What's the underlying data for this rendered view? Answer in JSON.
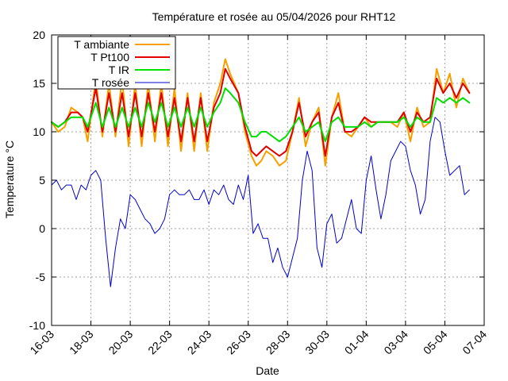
{
  "chart_data": {
    "type": "line",
    "title": "Température et rosée au 05/04/2026 pour RHT12",
    "xlabel": "Date",
    "ylabel": "Temperature °C",
    "xlim": [
      "2026-03-16",
      "2026-04-07"
    ],
    "ylim": [
      -10,
      20
    ],
    "grid": true,
    "legend_position": "top-left",
    "x_ticks": [
      {
        "date": "2026-03-16",
        "label": "16-03"
      },
      {
        "date": "2026-03-18",
        "label": "18-03"
      },
      {
        "date": "2026-03-20",
        "label": "20-03"
      },
      {
        "date": "2026-03-22",
        "label": "22-03"
      },
      {
        "date": "2026-03-24",
        "label": "24-03"
      },
      {
        "date": "2026-03-26",
        "label": "26-03"
      },
      {
        "date": "2026-03-28",
        "label": "28-03"
      },
      {
        "date": "2026-03-30",
        "label": "30-03"
      },
      {
        "date": "2026-04-01",
        "label": "01-04"
      },
      {
        "date": "2026-04-03",
        "label": "03-04"
      },
      {
        "date": "2026-04-05",
        "label": "05-04"
      },
      {
        "date": "2026-04-07",
        "label": "07-04"
      }
    ],
    "y_ticks": [
      {
        "value": 20,
        "label": "20"
      },
      {
        "value": 15,
        "label": "15"
      },
      {
        "value": 10,
        "label": "10"
      },
      {
        "value": 5,
        "label": "5"
      },
      {
        "value": 0,
        "label": "0"
      },
      {
        "value": -5,
        "label": "-5"
      },
      {
        "value": -10,
        "label": "-10"
      }
    ],
    "series": [
      {
        "name": "T ambiante",
        "color": "#f5a000",
        "x": [
          "2026-03-16 00:00",
          "2026-03-16 08:00",
          "2026-03-16 16:00",
          "2026-03-17 00:00",
          "2026-03-17 08:00",
          "2026-03-17 14:00",
          "2026-03-17 20:00",
          "2026-03-18 06:00",
          "2026-03-18 14:00",
          "2026-03-18 22:00",
          "2026-03-19 06:00",
          "2026-03-19 14:00",
          "2026-03-19 22:00",
          "2026-03-20 06:00",
          "2026-03-20 14:00",
          "2026-03-20 22:00",
          "2026-03-21 06:00",
          "2026-03-21 14:00",
          "2026-03-21 22:00",
          "2026-03-22 06:00",
          "2026-03-22 14:00",
          "2026-03-22 22:00",
          "2026-03-23 06:00",
          "2026-03-23 14:00",
          "2026-03-23 22:00",
          "2026-03-24 06:00",
          "2026-03-24 14:00",
          "2026-03-24 20:00",
          "2026-03-25 02:00",
          "2026-03-25 12:00",
          "2026-03-25 20:00",
          "2026-03-26 04:00",
          "2026-03-26 10:00",
          "2026-03-26 16:00",
          "2026-03-26 22:00",
          "2026-03-27 06:00",
          "2026-03-27 14:00",
          "2026-03-27 22:00",
          "2026-03-28 06:00",
          "2026-03-28 14:00",
          "2026-03-28 22:00",
          "2026-03-29 06:00",
          "2026-03-29 14:00",
          "2026-03-29 22:00",
          "2026-03-30 06:00",
          "2026-03-30 14:00",
          "2026-03-30 22:00",
          "2026-03-31 06:00",
          "2026-03-31 14:00",
          "2026-03-31 22:00",
          "2026-04-01 06:00",
          "2026-04-01 14:00",
          "2026-04-01 22:00",
          "2026-04-02 06:00",
          "2026-04-02 14:00",
          "2026-04-02 22:00",
          "2026-04-03 06:00",
          "2026-04-03 14:00",
          "2026-04-03 22:00",
          "2026-04-04 06:00",
          "2026-04-04 14:00",
          "2026-04-04 22:00",
          "2026-04-05 06:00",
          "2026-04-05 14:00",
          "2026-04-05 22:00",
          "2026-04-06 06:00"
        ],
        "y": [
          11.0,
          10.0,
          10.5,
          12.5,
          12.0,
          11.5,
          9.0,
          15.5,
          9.5,
          15.0,
          9.5,
          15.5,
          8.5,
          15.0,
          8.5,
          15.0,
          9.0,
          15.0,
          8.5,
          14.5,
          8.0,
          14.0,
          8.0,
          14.0,
          8.0,
          13.0,
          15.0,
          17.5,
          16.0,
          14.0,
          10.0,
          7.5,
          6.5,
          7.0,
          8.0,
          7.5,
          6.5,
          7.0,
          10.0,
          13.5,
          8.5,
          11.0,
          12.5,
          6.5,
          11.5,
          14.0,
          10.0,
          9.5,
          10.5,
          11.5,
          10.5,
          11.0,
          11.0,
          11.0,
          10.5,
          12.0,
          9.0,
          12.5,
          10.5,
          11.0,
          16.5,
          14.0,
          16.0,
          12.5,
          15.5,
          14.0
        ]
      },
      {
        "name": "T Pt100",
        "color": "#e00000",
        "x": [
          "2026-03-16 00:00",
          "2026-03-16 08:00",
          "2026-03-16 16:00",
          "2026-03-17 00:00",
          "2026-03-17 08:00",
          "2026-03-17 14:00",
          "2026-03-17 20:00",
          "2026-03-18 06:00",
          "2026-03-18 14:00",
          "2026-03-18 22:00",
          "2026-03-19 06:00",
          "2026-03-19 14:00",
          "2026-03-19 22:00",
          "2026-03-20 06:00",
          "2026-03-20 14:00",
          "2026-03-20 22:00",
          "2026-03-21 06:00",
          "2026-03-21 14:00",
          "2026-03-21 22:00",
          "2026-03-22 06:00",
          "2026-03-22 14:00",
          "2026-03-22 22:00",
          "2026-03-23 06:00",
          "2026-03-23 14:00",
          "2026-03-23 22:00",
          "2026-03-24 06:00",
          "2026-03-24 14:00",
          "2026-03-24 20:00",
          "2026-03-25 02:00",
          "2026-03-25 12:00",
          "2026-03-25 20:00",
          "2026-03-26 04:00",
          "2026-03-26 10:00",
          "2026-03-26 16:00",
          "2026-03-26 22:00",
          "2026-03-27 06:00",
          "2026-03-27 14:00",
          "2026-03-27 22:00",
          "2026-03-28 06:00",
          "2026-03-28 14:00",
          "2026-03-28 22:00",
          "2026-03-29 06:00",
          "2026-03-29 14:00",
          "2026-03-29 22:00",
          "2026-03-30 06:00",
          "2026-03-30 14:00",
          "2026-03-30 22:00",
          "2026-03-31 06:00",
          "2026-03-31 14:00",
          "2026-03-31 22:00",
          "2026-04-01 06:00",
          "2026-04-01 14:00",
          "2026-04-01 22:00",
          "2026-04-02 06:00",
          "2026-04-02 14:00",
          "2026-04-02 22:00",
          "2026-04-03 06:00",
          "2026-04-03 14:00",
          "2026-04-03 22:00",
          "2026-04-04 06:00",
          "2026-04-04 14:00",
          "2026-04-04 22:00",
          "2026-04-05 06:00",
          "2026-04-05 14:00",
          "2026-04-05 22:00",
          "2026-04-06 06:00"
        ],
        "y": [
          11.0,
          10.5,
          11.0,
          12.0,
          12.0,
          11.5,
          10.0,
          14.5,
          10.0,
          14.0,
          10.0,
          14.0,
          9.5,
          14.0,
          9.5,
          14.0,
          10.0,
          14.0,
          9.5,
          13.5,
          9.0,
          13.5,
          9.0,
          13.5,
          9.0,
          12.5,
          14.0,
          16.5,
          15.5,
          14.0,
          10.5,
          8.0,
          7.5,
          8.0,
          8.5,
          8.0,
          7.5,
          8.0,
          10.0,
          13.0,
          9.5,
          11.0,
          12.0,
          7.5,
          11.5,
          13.0,
          10.0,
          10.0,
          10.5,
          11.5,
          11.0,
          11.0,
          11.0,
          11.0,
          11.0,
          12.0,
          10.0,
          12.0,
          11.0,
          11.5,
          15.5,
          14.0,
          15.0,
          13.5,
          15.0,
          14.0
        ]
      },
      {
        "name": "T IR",
        "color": "#00e000",
        "x": [
          "2026-03-16 00:00",
          "2026-03-16 08:00",
          "2026-03-16 16:00",
          "2026-03-17 00:00",
          "2026-03-17 08:00",
          "2026-03-17 14:00",
          "2026-03-17 20:00",
          "2026-03-18 06:00",
          "2026-03-18 14:00",
          "2026-03-18 22:00",
          "2026-03-19 06:00",
          "2026-03-19 14:00",
          "2026-03-19 22:00",
          "2026-03-20 06:00",
          "2026-03-20 14:00",
          "2026-03-20 22:00",
          "2026-03-21 06:00",
          "2026-03-21 14:00",
          "2026-03-21 22:00",
          "2026-03-22 06:00",
          "2026-03-22 14:00",
          "2026-03-22 22:00",
          "2026-03-23 06:00",
          "2026-03-23 14:00",
          "2026-03-23 22:00",
          "2026-03-24 06:00",
          "2026-03-24 14:00",
          "2026-03-24 20:00",
          "2026-03-25 02:00",
          "2026-03-25 12:00",
          "2026-03-25 20:00",
          "2026-03-26 04:00",
          "2026-03-26 10:00",
          "2026-03-26 16:00",
          "2026-03-26 22:00",
          "2026-03-27 06:00",
          "2026-03-27 14:00",
          "2026-03-27 22:00",
          "2026-03-28 06:00",
          "2026-03-28 14:00",
          "2026-03-28 22:00",
          "2026-03-29 06:00",
          "2026-03-29 14:00",
          "2026-03-29 22:00",
          "2026-03-30 06:00",
          "2026-03-30 14:00",
          "2026-03-30 22:00",
          "2026-03-31 06:00",
          "2026-03-31 14:00",
          "2026-03-31 22:00",
          "2026-04-01 06:00",
          "2026-04-01 14:00",
          "2026-04-01 22:00",
          "2026-04-02 06:00",
          "2026-04-02 14:00",
          "2026-04-02 22:00",
          "2026-04-03 06:00",
          "2026-04-03 14:00",
          "2026-04-03 22:00",
          "2026-04-04 06:00",
          "2026-04-04 14:00",
          "2026-04-04 22:00",
          "2026-04-05 06:00",
          "2026-04-05 14:00",
          "2026-04-05 22:00",
          "2026-04-06 06:00"
        ],
        "y": [
          11.0,
          10.5,
          11.0,
          11.5,
          11.5,
          11.5,
          10.5,
          13.0,
          10.5,
          12.5,
          10.5,
          12.5,
          10.5,
          12.5,
          10.5,
          13.0,
          11.0,
          13.0,
          10.5,
          12.5,
          10.5,
          12.5,
          10.5,
          12.5,
          10.5,
          12.0,
          13.0,
          14.5,
          14.0,
          13.0,
          11.0,
          9.5,
          9.5,
          10.0,
          10.0,
          9.5,
          9.0,
          9.5,
          10.5,
          11.5,
          10.0,
          10.5,
          11.0,
          9.0,
          11.0,
          11.5,
          10.5,
          10.5,
          10.5,
          11.0,
          10.5,
          11.0,
          11.0,
          11.0,
          11.0,
          11.5,
          10.5,
          11.5,
          11.0,
          11.0,
          13.5,
          13.0,
          13.5,
          13.0,
          13.5,
          13.0
        ]
      },
      {
        "name": "T rosée",
        "color": "#0000cc",
        "x": [
          "2026-03-16 00:00",
          "2026-03-16 06:00",
          "2026-03-16 12:00",
          "2026-03-16 18:00",
          "2026-03-17 00:00",
          "2026-03-17 06:00",
          "2026-03-17 12:00",
          "2026-03-17 18:00",
          "2026-03-18 00:00",
          "2026-03-18 06:00",
          "2026-03-18 12:00",
          "2026-03-18 18:00",
          "2026-03-19 00:00",
          "2026-03-19 06:00",
          "2026-03-19 12:00",
          "2026-03-19 18:00",
          "2026-03-20 00:00",
          "2026-03-20 06:00",
          "2026-03-20 12:00",
          "2026-03-20 18:00",
          "2026-03-21 00:00",
          "2026-03-21 06:00",
          "2026-03-21 12:00",
          "2026-03-21 18:00",
          "2026-03-22 00:00",
          "2026-03-22 06:00",
          "2026-03-22 12:00",
          "2026-03-22 18:00",
          "2026-03-23 00:00",
          "2026-03-23 06:00",
          "2026-03-23 12:00",
          "2026-03-23 18:00",
          "2026-03-24 00:00",
          "2026-03-24 06:00",
          "2026-03-24 12:00",
          "2026-03-24 18:00",
          "2026-03-25 00:00",
          "2026-03-25 06:00",
          "2026-03-25 12:00",
          "2026-03-25 18:00",
          "2026-03-26 00:00",
          "2026-03-26 06:00",
          "2026-03-26 12:00",
          "2026-03-26 18:00",
          "2026-03-27 00:00",
          "2026-03-27 06:00",
          "2026-03-27 12:00",
          "2026-03-27 18:00",
          "2026-03-28 00:00",
          "2026-03-28 06:00",
          "2026-03-28 12:00",
          "2026-03-28 18:00",
          "2026-03-29 00:00",
          "2026-03-29 06:00",
          "2026-03-29 12:00",
          "2026-03-29 18:00",
          "2026-03-30 00:00",
          "2026-03-30 06:00",
          "2026-03-30 12:00",
          "2026-03-30 18:00",
          "2026-03-31 00:00",
          "2026-03-31 06:00",
          "2026-03-31 12:00",
          "2026-03-31 18:00",
          "2026-04-01 00:00",
          "2026-04-01 06:00",
          "2026-04-01 12:00",
          "2026-04-01 18:00",
          "2026-04-02 00:00",
          "2026-04-02 06:00",
          "2026-04-02 12:00",
          "2026-04-02 18:00",
          "2026-04-03 00:00",
          "2026-04-03 06:00",
          "2026-04-03 12:00",
          "2026-04-03 18:00",
          "2026-04-04 00:00",
          "2026-04-04 06:00",
          "2026-04-04 12:00",
          "2026-04-04 18:00",
          "2026-04-05 00:00",
          "2026-04-05 06:00",
          "2026-04-05 12:00",
          "2026-04-05 18:00",
          "2026-04-06 00:00",
          "2026-04-06 06:00"
        ],
        "y": [
          4.5,
          5.0,
          4.0,
          4.5,
          4.5,
          3.0,
          4.5,
          4.0,
          5.5,
          6.0,
          5.0,
          -1.0,
          -6.0,
          -2.0,
          1.0,
          0.0,
          3.5,
          3.0,
          2.0,
          1.0,
          0.5,
          -0.5,
          0.0,
          1.0,
          3.5,
          4.0,
          3.5,
          3.5,
          4.0,
          3.0,
          3.0,
          4.0,
          2.5,
          4.0,
          3.5,
          4.5,
          3.0,
          2.5,
          4.5,
          3.0,
          5.5,
          -0.5,
          0.5,
          -1.0,
          -1.0,
          -3.5,
          -2.0,
          -4.0,
          -5.0,
          -3.0,
          -1.0,
          5.0,
          8.0,
          6.0,
          -2.0,
          -4.0,
          0.5,
          1.5,
          -1.5,
          -1.0,
          1.0,
          3.0,
          0.0,
          -0.5,
          5.0,
          7.5,
          4.0,
          1.0,
          3.5,
          7.0,
          8.0,
          9.0,
          8.5,
          6.0,
          4.5,
          1.5,
          3.0,
          9.0,
          11.5,
          11.0,
          8.0,
          5.5,
          6.0,
          6.5,
          3.5,
          4.0
        ]
      }
    ]
  }
}
